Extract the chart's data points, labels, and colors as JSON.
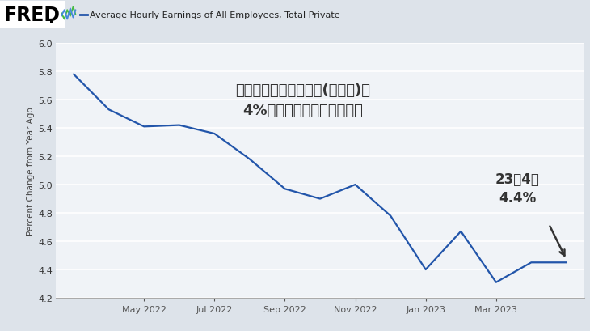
{
  "title_header": "Average Hourly Earnings of All Employees, Total Private",
  "ylabel": "Percent Change from Year Ago",
  "bg_color": "#dde3ea",
  "plot_bg_color": "#f0f3f7",
  "line_color": "#2255aa",
  "annotation_line1": "アメリカの賃金上昇率(前年比)は",
  "annotation_line2": "4%前半で下げ止まっている",
  "label_line1": "23年4月",
  "label_line2": "4.4%",
  "ylim": [
    4.2,
    6.0
  ],
  "yticks": [
    4.2,
    4.4,
    4.6,
    4.8,
    5.0,
    5.2,
    5.4,
    5.6,
    5.8,
    6.0
  ],
  "values": [
    5.78,
    5.53,
    5.41,
    5.42,
    5.36,
    5.18,
    4.97,
    4.9,
    5.0,
    4.78,
    4.4,
    4.67,
    4.31,
    4.45,
    4.45
  ],
  "xtick_labels": [
    "May 2022",
    "Jul 2022",
    "Sep 2022",
    "Nov 2022",
    "Jan 2023",
    "Mar 2023"
  ],
  "xtick_positions": [
    2,
    4,
    6,
    8,
    10,
    12
  ]
}
